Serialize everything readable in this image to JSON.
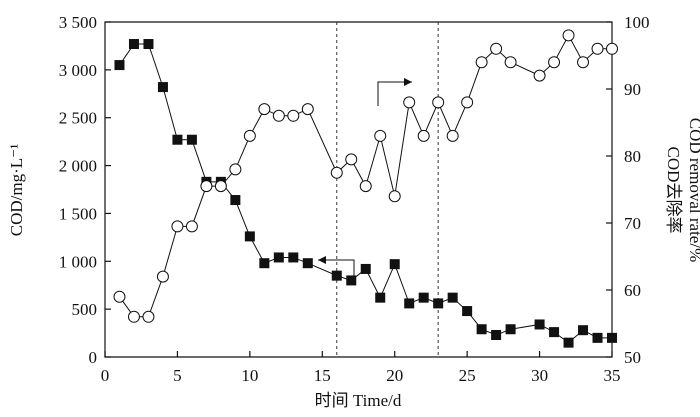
{
  "chart_data": {
    "type": "line",
    "xlabel": "时间 Time/d",
    "ylabel": "COD/mg·L⁻¹",
    "ylabel_right_line1": "COD去除率",
    "ylabel_right_line2": "COD removal rate/%",
    "xlim": [
      0,
      35
    ],
    "ylim": [
      0,
      3500
    ],
    "y2lim": [
      50,
      100
    ],
    "x_ticks": [
      0,
      5,
      10,
      15,
      20,
      25,
      30,
      35
    ],
    "x_tick_labels": [
      "0",
      "5",
      "10",
      "15",
      "20",
      "25",
      "30",
      "35"
    ],
    "y_ticks": [
      0,
      500,
      1000,
      1500,
      2000,
      2500,
      3000,
      3500
    ],
    "y_tick_labels": [
      "0",
      "500",
      "1 000",
      "1 500",
      "2 000",
      "2 500",
      "3 000",
      "3 500"
    ],
    "y2_ticks": [
      50,
      60,
      70,
      80,
      90,
      100
    ],
    "y2_tick_labels": [
      "50",
      "60",
      "70",
      "80",
      "90",
      "100"
    ],
    "vertical_lines": [
      16,
      23
    ],
    "series": [
      {
        "marker": "filled-square",
        "axis": "left",
        "x": [
          1,
          2,
          3,
          4,
          5,
          6,
          7,
          8,
          9,
          10,
          11,
          12,
          13,
          14,
          16,
          17,
          18,
          19,
          20,
          21,
          22,
          23,
          24,
          25,
          26,
          27,
          28,
          30,
          31,
          32,
          33,
          34,
          35
        ],
        "values": [
          3050,
          3270,
          3270,
          2820,
          2270,
          2270,
          1830,
          1830,
          1640,
          1260,
          980,
          1040,
          1040,
          980,
          850,
          800,
          920,
          620,
          970,
          560,
          620,
          560,
          620,
          480,
          290,
          230,
          290,
          340,
          260,
          150,
          280,
          200,
          200
        ]
      },
      {
        "marker": "open-circle",
        "axis": "right",
        "x": [
          1,
          2,
          3,
          4,
          5,
          6,
          7,
          8,
          9,
          10,
          11,
          12,
          13,
          14,
          16,
          17,
          18,
          19,
          20,
          21,
          22,
          23,
          24,
          25,
          26,
          27,
          28,
          30,
          31,
          32,
          33,
          34,
          35
        ],
        "values": [
          59,
          56,
          56,
          62,
          69.5,
          69.5,
          75.5,
          75.5,
          78,
          83,
          87,
          86,
          86,
          87,
          77.5,
          79.5,
          75.5,
          83,
          74,
          88,
          83,
          88,
          83,
          88,
          94,
          96,
          94,
          92,
          94,
          98,
          94,
          96,
          96
        ]
      }
    ],
    "annotations": [
      {
        "type": "arrow",
        "direction": "left",
        "points_to": "left-axis"
      },
      {
        "type": "arrow",
        "direction": "right",
        "points_to": "right-axis"
      }
    ]
  }
}
